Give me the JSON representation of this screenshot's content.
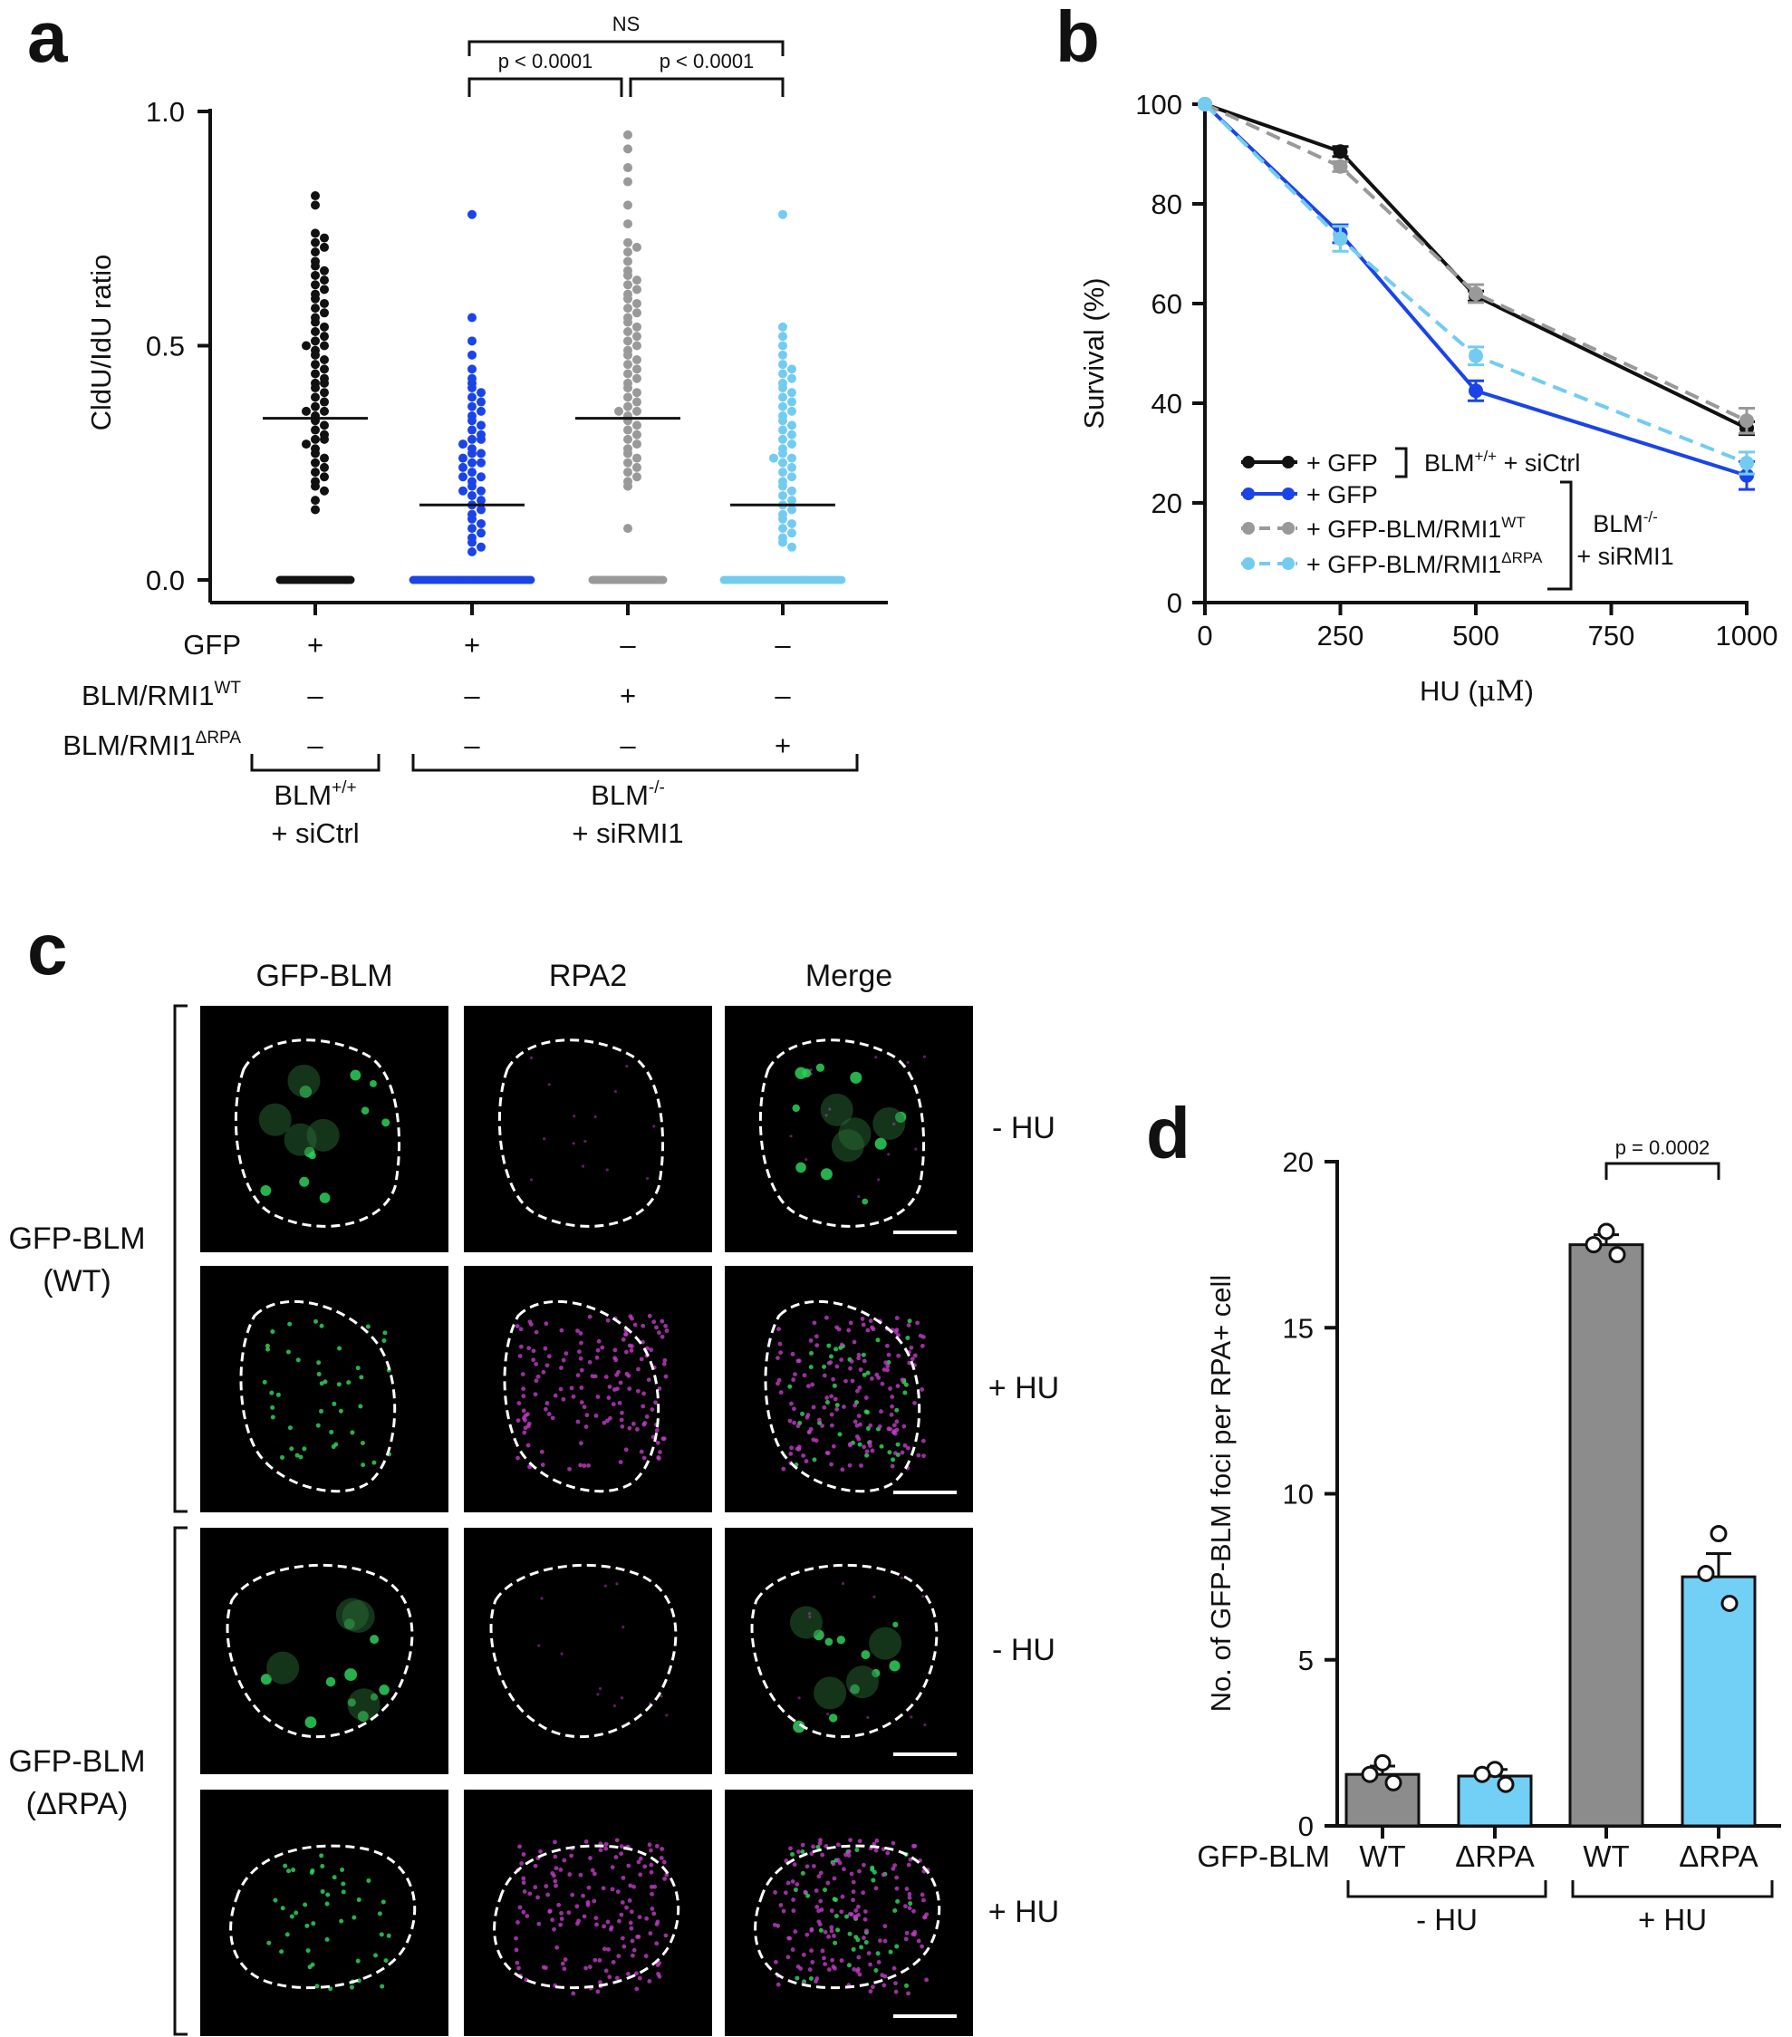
{
  "panel_labels": {
    "a": "a",
    "b": "b",
    "c": "c",
    "d": "d"
  },
  "colors": {
    "black": "#111111",
    "blue": "#1a44e8",
    "gray": "#999999",
    "light_blue": "#73ccf0",
    "green": "#2ed05a",
    "magenta": "#c23cc6",
    "bar_gray": "#8c8c8c",
    "bar_blue": "#72d0f6"
  },
  "chart_data": [
    {
      "id": "a",
      "type": "scatter",
      "title": "",
      "ylabel": "CldU/IdU ratio",
      "ylim": [
        0,
        1.0
      ],
      "yticks": [
        "0.0",
        "0.5",
        "1.0"
      ],
      "series": [
        {
          "name": "GFP in BLM+/+ + siCtrl",
          "color": "#111111",
          "median": 0.345,
          "zeros": 40,
          "values": [
            0.82,
            0.8,
            0.74,
            0.73,
            0.72,
            0.71,
            0.7,
            0.68,
            0.67,
            0.66,
            0.65,
            0.64,
            0.63,
            0.62,
            0.61,
            0.6,
            0.59,
            0.58,
            0.57,
            0.56,
            0.55,
            0.54,
            0.53,
            0.52,
            0.51,
            0.5,
            0.5,
            0.49,
            0.48,
            0.47,
            0.46,
            0.45,
            0.44,
            0.43,
            0.42,
            0.42,
            0.41,
            0.4,
            0.39,
            0.38,
            0.37,
            0.36,
            0.36,
            0.35,
            0.34,
            0.33,
            0.32,
            0.31,
            0.3,
            0.3,
            0.29,
            0.28,
            0.27,
            0.26,
            0.25,
            0.24,
            0.23,
            0.22,
            0.21,
            0.2,
            0.19,
            0.17,
            0.15
          ]
        },
        {
          "name": "GFP in BLM-/- + siRMI1",
          "color": "#1a44e8",
          "median": 0.16,
          "zeros": 60,
          "values": [
            0.78,
            0.56,
            0.51,
            0.48,
            0.45,
            0.43,
            0.42,
            0.41,
            0.4,
            0.39,
            0.38,
            0.37,
            0.36,
            0.35,
            0.34,
            0.33,
            0.32,
            0.31,
            0.3,
            0.3,
            0.29,
            0.28,
            0.27,
            0.27,
            0.26,
            0.25,
            0.25,
            0.24,
            0.23,
            0.22,
            0.22,
            0.21,
            0.2,
            0.19,
            0.19,
            0.18,
            0.17,
            0.16,
            0.15,
            0.14,
            0.13,
            0.12,
            0.11,
            0.1,
            0.09,
            0.08,
            0.07,
            0.06
          ]
        },
        {
          "name": "BLM/RMI1 WT in BLM-/- + siRMI1",
          "color": "#999999",
          "median": 0.345,
          "zeros": 40,
          "values": [
            0.95,
            0.92,
            0.88,
            0.85,
            0.8,
            0.76,
            0.72,
            0.71,
            0.7,
            0.68,
            0.66,
            0.65,
            0.64,
            0.63,
            0.62,
            0.61,
            0.6,
            0.59,
            0.58,
            0.57,
            0.56,
            0.55,
            0.54,
            0.53,
            0.52,
            0.51,
            0.5,
            0.49,
            0.48,
            0.47,
            0.46,
            0.45,
            0.44,
            0.43,
            0.42,
            0.41,
            0.4,
            0.39,
            0.38,
            0.37,
            0.36,
            0.36,
            0.35,
            0.34,
            0.33,
            0.32,
            0.31,
            0.3,
            0.29,
            0.28,
            0.27,
            0.26,
            0.25,
            0.24,
            0.23,
            0.22,
            0.21,
            0.2,
            0.11
          ]
        },
        {
          "name": "BLM/RMI1 dRPA in BLM-/- + siRMI1",
          "color": "#73ccf0",
          "median": 0.16,
          "zeros": 60,
          "values": [
            0.78,
            0.54,
            0.52,
            0.5,
            0.48,
            0.46,
            0.45,
            0.44,
            0.43,
            0.42,
            0.41,
            0.4,
            0.39,
            0.38,
            0.37,
            0.36,
            0.35,
            0.34,
            0.33,
            0.32,
            0.31,
            0.3,
            0.29,
            0.28,
            0.27,
            0.26,
            0.26,
            0.25,
            0.24,
            0.23,
            0.22,
            0.21,
            0.2,
            0.19,
            0.18,
            0.17,
            0.16,
            0.15,
            0.14,
            0.13,
            0.12,
            0.11,
            0.1,
            0.09,
            0.08,
            0.07
          ]
        }
      ],
      "significance": [
        {
          "label": "NS"
        },
        {
          "label": "p < 0.0001"
        },
        {
          "label": "p < 0.0001"
        }
      ],
      "condition_rows": [
        {
          "label": "GFP",
          "sup": "",
          "marks": [
            "+",
            "+",
            "–",
            "–"
          ]
        },
        {
          "label": "BLM/RMI1",
          "sup": "WT",
          "marks": [
            "–",
            "–",
            "+",
            "–"
          ]
        },
        {
          "label": "BLM/RMI1",
          "sup": "ΔRPA",
          "marks": [
            "–",
            "–",
            "–",
            "+"
          ]
        }
      ],
      "groups": [
        {
          "line1": "BLM",
          "sup": "+/+",
          "line2": "+ siCtrl"
        },
        {
          "line1": "BLM",
          "sup": "-/-",
          "line2": "+ siRMI1"
        }
      ]
    },
    {
      "id": "b",
      "type": "line",
      "xlabel_pre": "HU (",
      "xlabel_unit": "μM",
      "xlabel_post": ")",
      "ylabel": "Survival (%)",
      "x": [
        0,
        250,
        500,
        1000
      ],
      "xticks": [
        "0",
        "250",
        "500",
        "750",
        "1000"
      ],
      "yticks": [
        "0",
        "20",
        "40",
        "60",
        "80",
        "100"
      ],
      "xlim": [
        0,
        1000
      ],
      "ylim": [
        0,
        100
      ],
      "series": [
        {
          "name": "+ GFP",
          "sup": "",
          "color": "#111111",
          "dashed": false,
          "values": [
            100,
            90.5,
            61.5,
            35
          ],
          "errors": [
            0,
            1,
            1,
            1.3
          ]
        },
        {
          "name": "+ GFP",
          "sup": "",
          "color": "#1a44e8",
          "dashed": false,
          "values": [
            100,
            74,
            42.5,
            25.5
          ],
          "errors": [
            0,
            1.8,
            2,
            2.8
          ]
        },
        {
          "name": "+ GFP-BLM/RMI1",
          "sup": "WT",
          "color": "#999999",
          "dashed": true,
          "values": [
            100,
            87.5,
            62,
            36.5
          ],
          "errors": [
            0,
            1,
            1.8,
            2.5
          ]
        },
        {
          "name": "+ GFP-BLM/RMI1",
          "sup": "ΔRPA",
          "color": "#73ccf0",
          "dashed": true,
          "values": [
            100,
            73,
            49.5,
            28
          ],
          "errors": [
            0,
            2.5,
            1.8,
            2.2
          ]
        }
      ],
      "legend_group1": {
        "line1": "BLM",
        "sup": "+/+",
        "rest": " + siCtrl"
      },
      "legend_group2": {
        "line1": "BLM",
        "sup": "-/-",
        "line2": "+ siRMI1"
      }
    },
    {
      "id": "c",
      "type": "image-grid",
      "columns": [
        "GFP-BLM",
        "RPA2",
        "Merge"
      ],
      "row_conditions": [
        "- HU",
        "+ HU",
        "- HU",
        "+ HU"
      ],
      "groups": [
        {
          "line1": "GFP-BLM",
          "line2": "(WT)"
        },
        {
          "line1": "GFP-BLM",
          "line2": "(ΔRPA)"
        }
      ]
    },
    {
      "id": "d",
      "type": "bar",
      "ylabel": "No. of GFP-BLM foci per RPA+ cell",
      "ylim": [
        0,
        20
      ],
      "yticks": [
        "0",
        "5",
        "10",
        "15",
        "20"
      ],
      "row_label": "GFP-BLM",
      "categories": [
        "WT",
        "ΔRPA",
        "WT",
        "ΔRPA"
      ],
      "values": [
        1.55,
        1.5,
        17.5,
        7.5
      ],
      "errors": [
        0.25,
        0.2,
        0.3,
        0.7
      ],
      "points": [
        [
          1.9,
          1.55,
          1.3
        ],
        [
          1.7,
          1.55,
          1.25
        ],
        [
          17.9,
          17.5,
          17.2
        ],
        [
          8.8,
          7.6,
          6.7
        ]
      ],
      "colors": [
        "#8c8c8c",
        "#72d0f6",
        "#8c8c8c",
        "#72d0f6"
      ],
      "significance": {
        "label": "p = 0.0002"
      },
      "groups": [
        "- HU",
        "+ HU"
      ]
    }
  ]
}
